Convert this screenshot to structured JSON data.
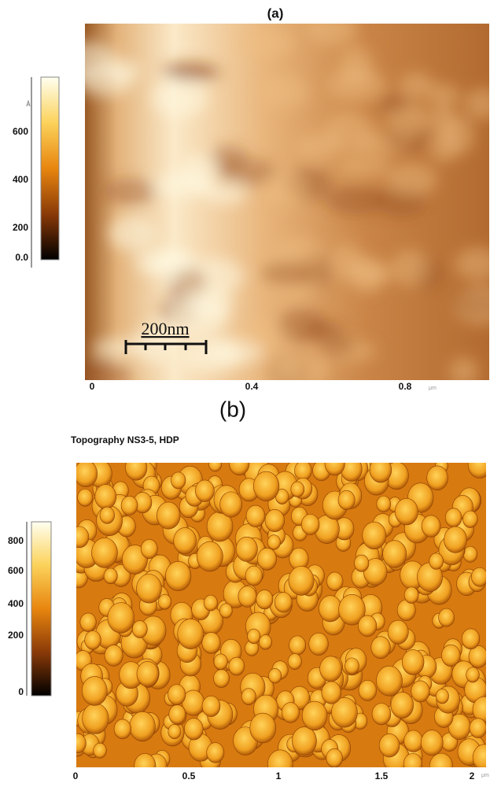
{
  "panel_a": {
    "label": "(a)",
    "colorbar_unit": "Å",
    "colorbar_ticks": [
      "600",
      "400",
      "200",
      "0.0"
    ],
    "x_ticks": [
      "0",
      "0.4",
      "0.8"
    ],
    "x_unit": "μm",
    "scale_bar": "200nm"
  },
  "panel_b": {
    "label": "(b)",
    "title": "Topography NS3-5, HDP",
    "colorbar_ticks": [
      "800",
      "600",
      "400",
      "200",
      "0"
    ],
    "x_ticks": [
      "0",
      "0.5",
      "1",
      "1.5",
      "2"
    ],
    "x_unit": "μm"
  }
}
